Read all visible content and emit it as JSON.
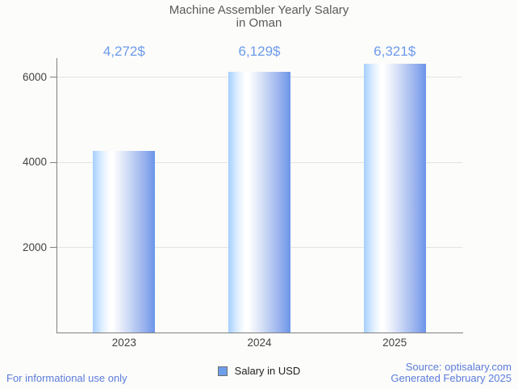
{
  "chart_data": {
    "type": "bar",
    "title": "Machine Assembler Yearly Salary in Oman",
    "title_lines": [
      "Machine Assembler Yearly Salary",
      "in Oman"
    ],
    "categories": [
      "2023",
      "2024",
      "2025"
    ],
    "values": [
      4272,
      6129,
      6321
    ],
    "value_labels": [
      "4,272$",
      "6,129$",
      "6,321$"
    ],
    "series_name": "Salary in USD",
    "xlabel": "",
    "ylabel": "",
    "ylim": [
      0,
      6450
    ],
    "yticks": [
      2000,
      4000,
      6000
    ],
    "ytick_labels": [
      "2000",
      "4000",
      "6000"
    ],
    "grid": true,
    "legend_position": "bottom"
  },
  "legend": {
    "label": "Salary in USD"
  },
  "footer": {
    "left": "For informational use only",
    "source": "Source: optisalary.com",
    "generated": "Generated February 2025"
  },
  "colors": {
    "background": "#FCFCFA",
    "title_text": "#5A5A5A",
    "tick_text": "#424242",
    "axis": "#808080",
    "gridline": "#E4E4E4",
    "value_label": "#6C9BEA",
    "footer_link": "#5B7CDB",
    "legend_swatch": "#6D9EEB",
    "bar_gradient_left": "#A5CFFF",
    "bar_gradient_mid": "#FFFFFF",
    "bar_gradient_right": "#6C95E9"
  }
}
